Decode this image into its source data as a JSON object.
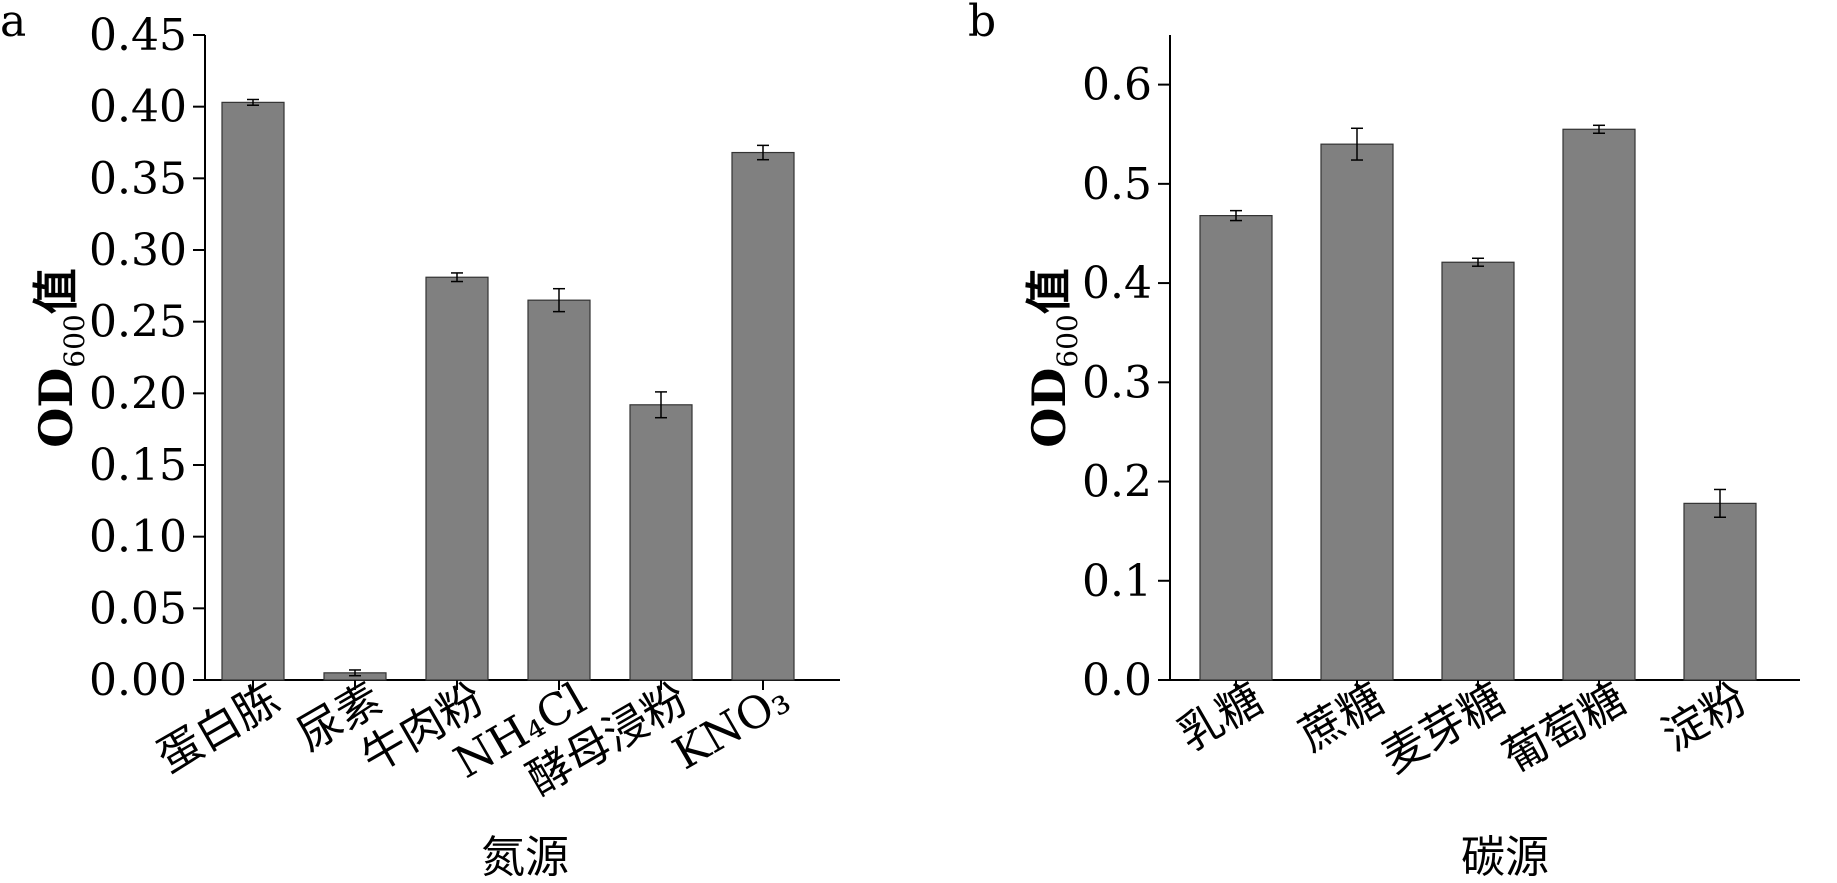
{
  "chart_data": [
    {
      "panel": "a",
      "type": "bar",
      "xlabel": "氮源",
      "ylabel": {
        "main": "OD",
        "sub": "600",
        "suffix": "值"
      },
      "categories": [
        "蛋白胨",
        "尿素",
        "牛肉粉",
        "NH₄Cl",
        "酵母浸粉",
        "KNO₃"
      ],
      "values": [
        0.403,
        0.005,
        0.281,
        0.265,
        0.192,
        0.368
      ],
      "errors": [
        0.002,
        0.002,
        0.003,
        0.008,
        0.009,
        0.005
      ],
      "ylim": [
        0,
        0.45
      ],
      "yticks": [
        "0.00",
        "0.05",
        "0.10",
        "0.15",
        "0.20",
        "0.25",
        "0.30",
        "0.35",
        "0.40",
        "0.45"
      ],
      "bar_color": "#808080",
      "grid": false,
      "legend": "none"
    },
    {
      "panel": "b",
      "type": "bar",
      "xlabel": "碳源",
      "ylabel": {
        "main": "OD",
        "sub": "600",
        "suffix": "值"
      },
      "categories": [
        "乳糖",
        "蔗糖",
        "麦芽糖",
        "葡萄糖",
        "淀粉"
      ],
      "values": [
        0.468,
        0.54,
        0.421,
        0.555,
        0.178
      ],
      "errors": [
        0.005,
        0.016,
        0.004,
        0.004,
        0.014
      ],
      "ylim": [
        0,
        0.65
      ],
      "yticks": [
        "0.0",
        "0.1",
        "0.2",
        "0.3",
        "0.4",
        "0.5",
        "0.6"
      ],
      "bar_color": "#808080",
      "grid": false,
      "legend": "none"
    }
  ]
}
